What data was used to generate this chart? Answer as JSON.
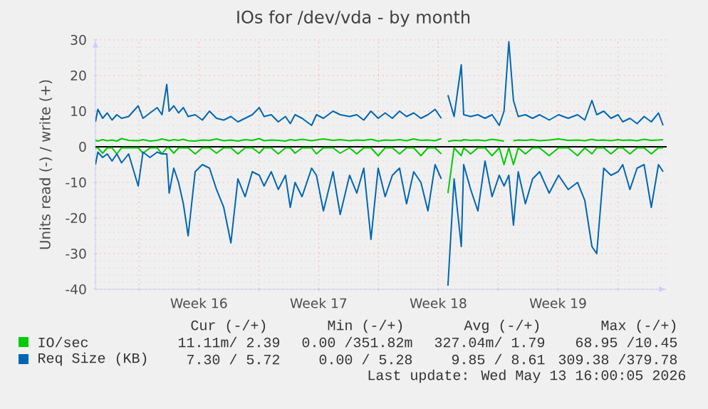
{
  "chart_data": {
    "type": "line",
    "title": "IOs for /dev/vda - by month",
    "ylabel": "Units read (-) / write (+)",
    "x": [
      "2026-04-10T10:48",
      "2026-04-10T14:10",
      "2026-04-10T20:53",
      "2026-04-11T03:22",
      "2026-04-11T10:05",
      "2026-04-11T16:48",
      "2026-04-11T23:31",
      "2026-04-12T09:22",
      "2026-04-12T22:48",
      "2026-04-13T05:31",
      "2026-04-13T15:22",
      "2026-04-14T01:26",
      "2026-04-14T08:10",
      "2026-04-14T14:53",
      "2026-04-14T18:14",
      "2026-04-15T00:43",
      "2026-04-15T07:26",
      "2026-04-15T14:10",
      "2026-04-15T20:53",
      "2026-04-16T06:43",
      "2026-04-16T16:48",
      "2026-04-17T02:53",
      "2026-04-17T12:43",
      "2026-04-17T22:48",
      "2026-04-18T08:53",
      "2026-04-18T18:43",
      "2026-04-19T04:48",
      "2026-04-19T14:53",
      "2026-04-20T00:43",
      "2026-04-20T07:26",
      "2026-04-20T17:31",
      "2026-04-21T03:22",
      "2026-04-21T13:26",
      "2026-04-21T20:10",
      "2026-04-22T02:53",
      "2026-04-22T12:43",
      "2026-04-23T02:10",
      "2026-04-23T08:53",
      "2026-04-23T18:43",
      "2026-04-24T08:10",
      "2026-04-24T18:14",
      "2026-04-25T07:26",
      "2026-04-25T17:31",
      "2026-04-26T03:22",
      "2026-04-26T13:26",
      "2026-04-26T23:31",
      "2026-04-27T09:22",
      "2026-04-27T19:26",
      "2026-04-28T05:31",
      "2026-04-28T15:22",
      "2026-04-29T01:26",
      "2026-04-29T11:31",
      "2026-04-29T21:22",
      "2026-04-30T07:26",
      "2026-04-30T16:05",
      "2026-04-30T20:24",
      "2026-05-01T01:26",
      "2026-05-01T10:05",
      "2026-05-01T20:10",
      "2026-05-01T23:31",
      "2026-05-02T09:22",
      "2026-05-02T19:26",
      "2026-05-03T05:31",
      "2026-05-03T15:22",
      "2026-05-04T01:26",
      "2026-05-04T08:10",
      "2026-05-04T14:53",
      "2026-05-04T21:22",
      "2026-05-05T04:05",
      "2026-05-05T14:10",
      "2026-05-06T00:14",
      "2026-05-06T10:05",
      "2026-05-06T23:31",
      "2026-05-07T12:43",
      "2026-05-08T02:10",
      "2026-05-08T15:22",
      "2026-05-09T01:26",
      "2026-05-09T11:31",
      "2026-05-09T18:14",
      "2026-05-10T04:05",
      "2026-05-10T14:10",
      "2026-05-11T00:14",
      "2026-05-11T06:43",
      "2026-05-11T16:48",
      "2026-05-12T02:53",
      "2026-05-12T12:43",
      "2026-05-12T22:48",
      "2026-05-13T08:53",
      "2026-05-13T15:22"
    ],
    "series": [
      {
        "name": "IO/sec",
        "color": "#00cc00",
        "values": [
          1.8,
          1.6,
          2.0,
          1.7,
          1.9,
          1.6,
          2.3,
          1.8,
          1.7,
          2.0,
          1.6,
          1.8,
          2.2,
          1.9,
          1.7,
          2.0,
          1.8,
          2.1,
          1.7,
          1.6,
          1.9,
          1.8,
          2.2,
          1.7,
          1.9,
          1.6,
          2.0,
          1.8,
          2.3,
          1.7,
          1.9,
          1.8,
          1.6,
          2.0,
          1.8,
          2.1,
          1.7,
          1.9,
          2.2,
          1.8,
          2.0,
          1.7,
          1.9,
          1.8,
          2.1,
          1.6,
          1.9,
          1.8,
          2.0,
          1.7,
          2.2,
          1.8,
          1.9,
          1.7,
          2.3,
          null,
          1.5,
          1.8,
          1.7,
          2.0,
          1.8,
          1.9,
          1.7,
          2.1,
          1.8,
          1.6,
          null,
          1.7,
          1.9,
          1.8,
          2.0,
          1.7,
          1.9,
          2.2,
          1.8,
          1.9,
          1.7,
          2.1,
          1.8,
          1.9,
          1.7,
          2.0,
          1.8,
          1.9,
          1.7,
          2.1,
          1.8,
          1.9,
          2.0
        ]
      },
      {
        "color": "#00cc00",
        "values": [
          -0.3,
          -0.3,
          -1.8,
          -0.3,
          -0.3,
          -2,
          -0.3,
          -0.3,
          -0.3,
          -1.8,
          -0.3,
          -0.3,
          -2,
          -0.3,
          -0.3,
          -1.8,
          -0.3,
          -0.3,
          -0.3,
          -2,
          -0.3,
          -0.3,
          -1.8,
          -0.3,
          -0.3,
          -2,
          -0.3,
          -0.3,
          -1.8,
          -0.3,
          -0.3,
          -2,
          -0.3,
          -0.3,
          -1.8,
          -0.3,
          -0.3,
          -2,
          -0.3,
          -0.3,
          -1.8,
          -0.3,
          -2,
          -0.3,
          -0.3,
          -2.5,
          -0.3,
          -0.3,
          -2,
          -0.3,
          -0.3,
          -2.5,
          -0.3,
          -0.3,
          -2,
          null,
          -13,
          -0.3,
          -2.5,
          -0.3,
          -2,
          -0.3,
          -0.3,
          -2.5,
          -0.3,
          -5,
          -0.3,
          -5,
          -0.3,
          -2,
          -0.3,
          -0.3,
          -2.5,
          -0.3,
          -0.3,
          -2.5,
          -0.3,
          -2,
          -0.3,
          -0.3,
          -2,
          -0.3,
          -0.3,
          -2,
          -0.3,
          -0.3,
          -2,
          -0.3,
          -0.3
        ]
      },
      {
        "name": "Req Size (KB)",
        "color": "#0066b3",
        "values": [
          7,
          10.5,
          8,
          9.5,
          7.5,
          9,
          8,
          8.5,
          11.5,
          8,
          9.5,
          11,
          9,
          17.5,
          10,
          11.5,
          9.5,
          11,
          8.5,
          9,
          7.5,
          10,
          8,
          7.5,
          8.5,
          7,
          8,
          9,
          11,
          8.5,
          9,
          7,
          8.5,
          6.5,
          9,
          8,
          6,
          9,
          8,
          10,
          9,
          8.5,
          9,
          7.5,
          10,
          8,
          9.5,
          8,
          10,
          8.5,
          9.5,
          8,
          9,
          10.5,
          8,
          null,
          14.5,
          8.5,
          23,
          9,
          8.5,
          9,
          8,
          9,
          6,
          10,
          29.5,
          13,
          8.5,
          9,
          8,
          9,
          7.5,
          9,
          8,
          9,
          7.5,
          13,
          9,
          10,
          8,
          9,
          7,
          8,
          6.5,
          8.5,
          7,
          9.5,
          6
        ]
      },
      {
        "color": "#0066b3",
        "values": [
          -5,
          -1.5,
          -3,
          -2,
          -4,
          -2,
          -4.5,
          -2,
          -11,
          -1.5,
          -3,
          -1.5,
          -2,
          -2,
          -13,
          -6,
          -10,
          -16,
          -25,
          -7,
          -5,
          -6,
          -12,
          -17,
          -27,
          -9,
          -14,
          -7,
          -8,
          -11,
          -7,
          -12,
          -8,
          -17,
          -10,
          -14,
          -6,
          -8,
          -18,
          -7,
          -19,
          -8,
          -13,
          -6,
          -26,
          -6,
          -14,
          -8,
          -6,
          -16,
          -7,
          -10,
          -18,
          -5,
          -9,
          null,
          -39,
          -9,
          -28,
          -5,
          -12,
          -18,
          -4,
          -14,
          -8,
          -11,
          -8,
          -22,
          -7,
          -16,
          -9,
          -7,
          -13,
          -8,
          -12,
          -10,
          -15,
          -28,
          -30,
          -6,
          -8,
          -7,
          -5,
          -12,
          -6,
          -5,
          -17,
          -5,
          -7
        ]
      }
    ],
    "xlim": [
      "2026-04-10T10:48",
      "2026-05-13T20:24"
    ],
    "xticks": [
      {
        "value": "2026-04-13",
        "label": null
      },
      {
        "value": "2026-04-16T12:00",
        "label": "Week 16"
      },
      {
        "value": "2026-04-20",
        "label": null
      },
      {
        "value": "2026-04-23T12:00",
        "label": "Week 17"
      },
      {
        "value": "2026-04-27",
        "label": null
      },
      {
        "value": "2026-04-30T12:00",
        "label": "Week 18"
      },
      {
        "value": "2026-05-04",
        "label": null
      },
      {
        "value": "2026-05-07T12:00",
        "label": "Week 19"
      },
      {
        "value": "2026-05-11",
        "label": null
      }
    ],
    "ylim": [
      -40,
      30
    ],
    "yticks": [
      -40,
      -30,
      -20,
      -10,
      0,
      10,
      20,
      30
    ],
    "grid": true,
    "legend": "bottom",
    "line_style": "solid",
    "ref_lines": [
      {
        "axis": "y",
        "value": 0,
        "color": "#000000"
      }
    ],
    "annotations": [
      "Cur (-/+)",
      "Min (-/+)",
      "Avg (-/+)",
      "Max (-/+)",
      "11.11m/ 2.39",
      "0.00 /351.82m",
      "327.04m/ 1.79",
      "68.95 /10.45",
      "7.30 / 5.72",
      "0.00 / 5.28",
      "9.85 / 8.61",
      "309.38 /379.78",
      "Last update: Wed May 13 16:00:05 2026"
    ]
  }
}
